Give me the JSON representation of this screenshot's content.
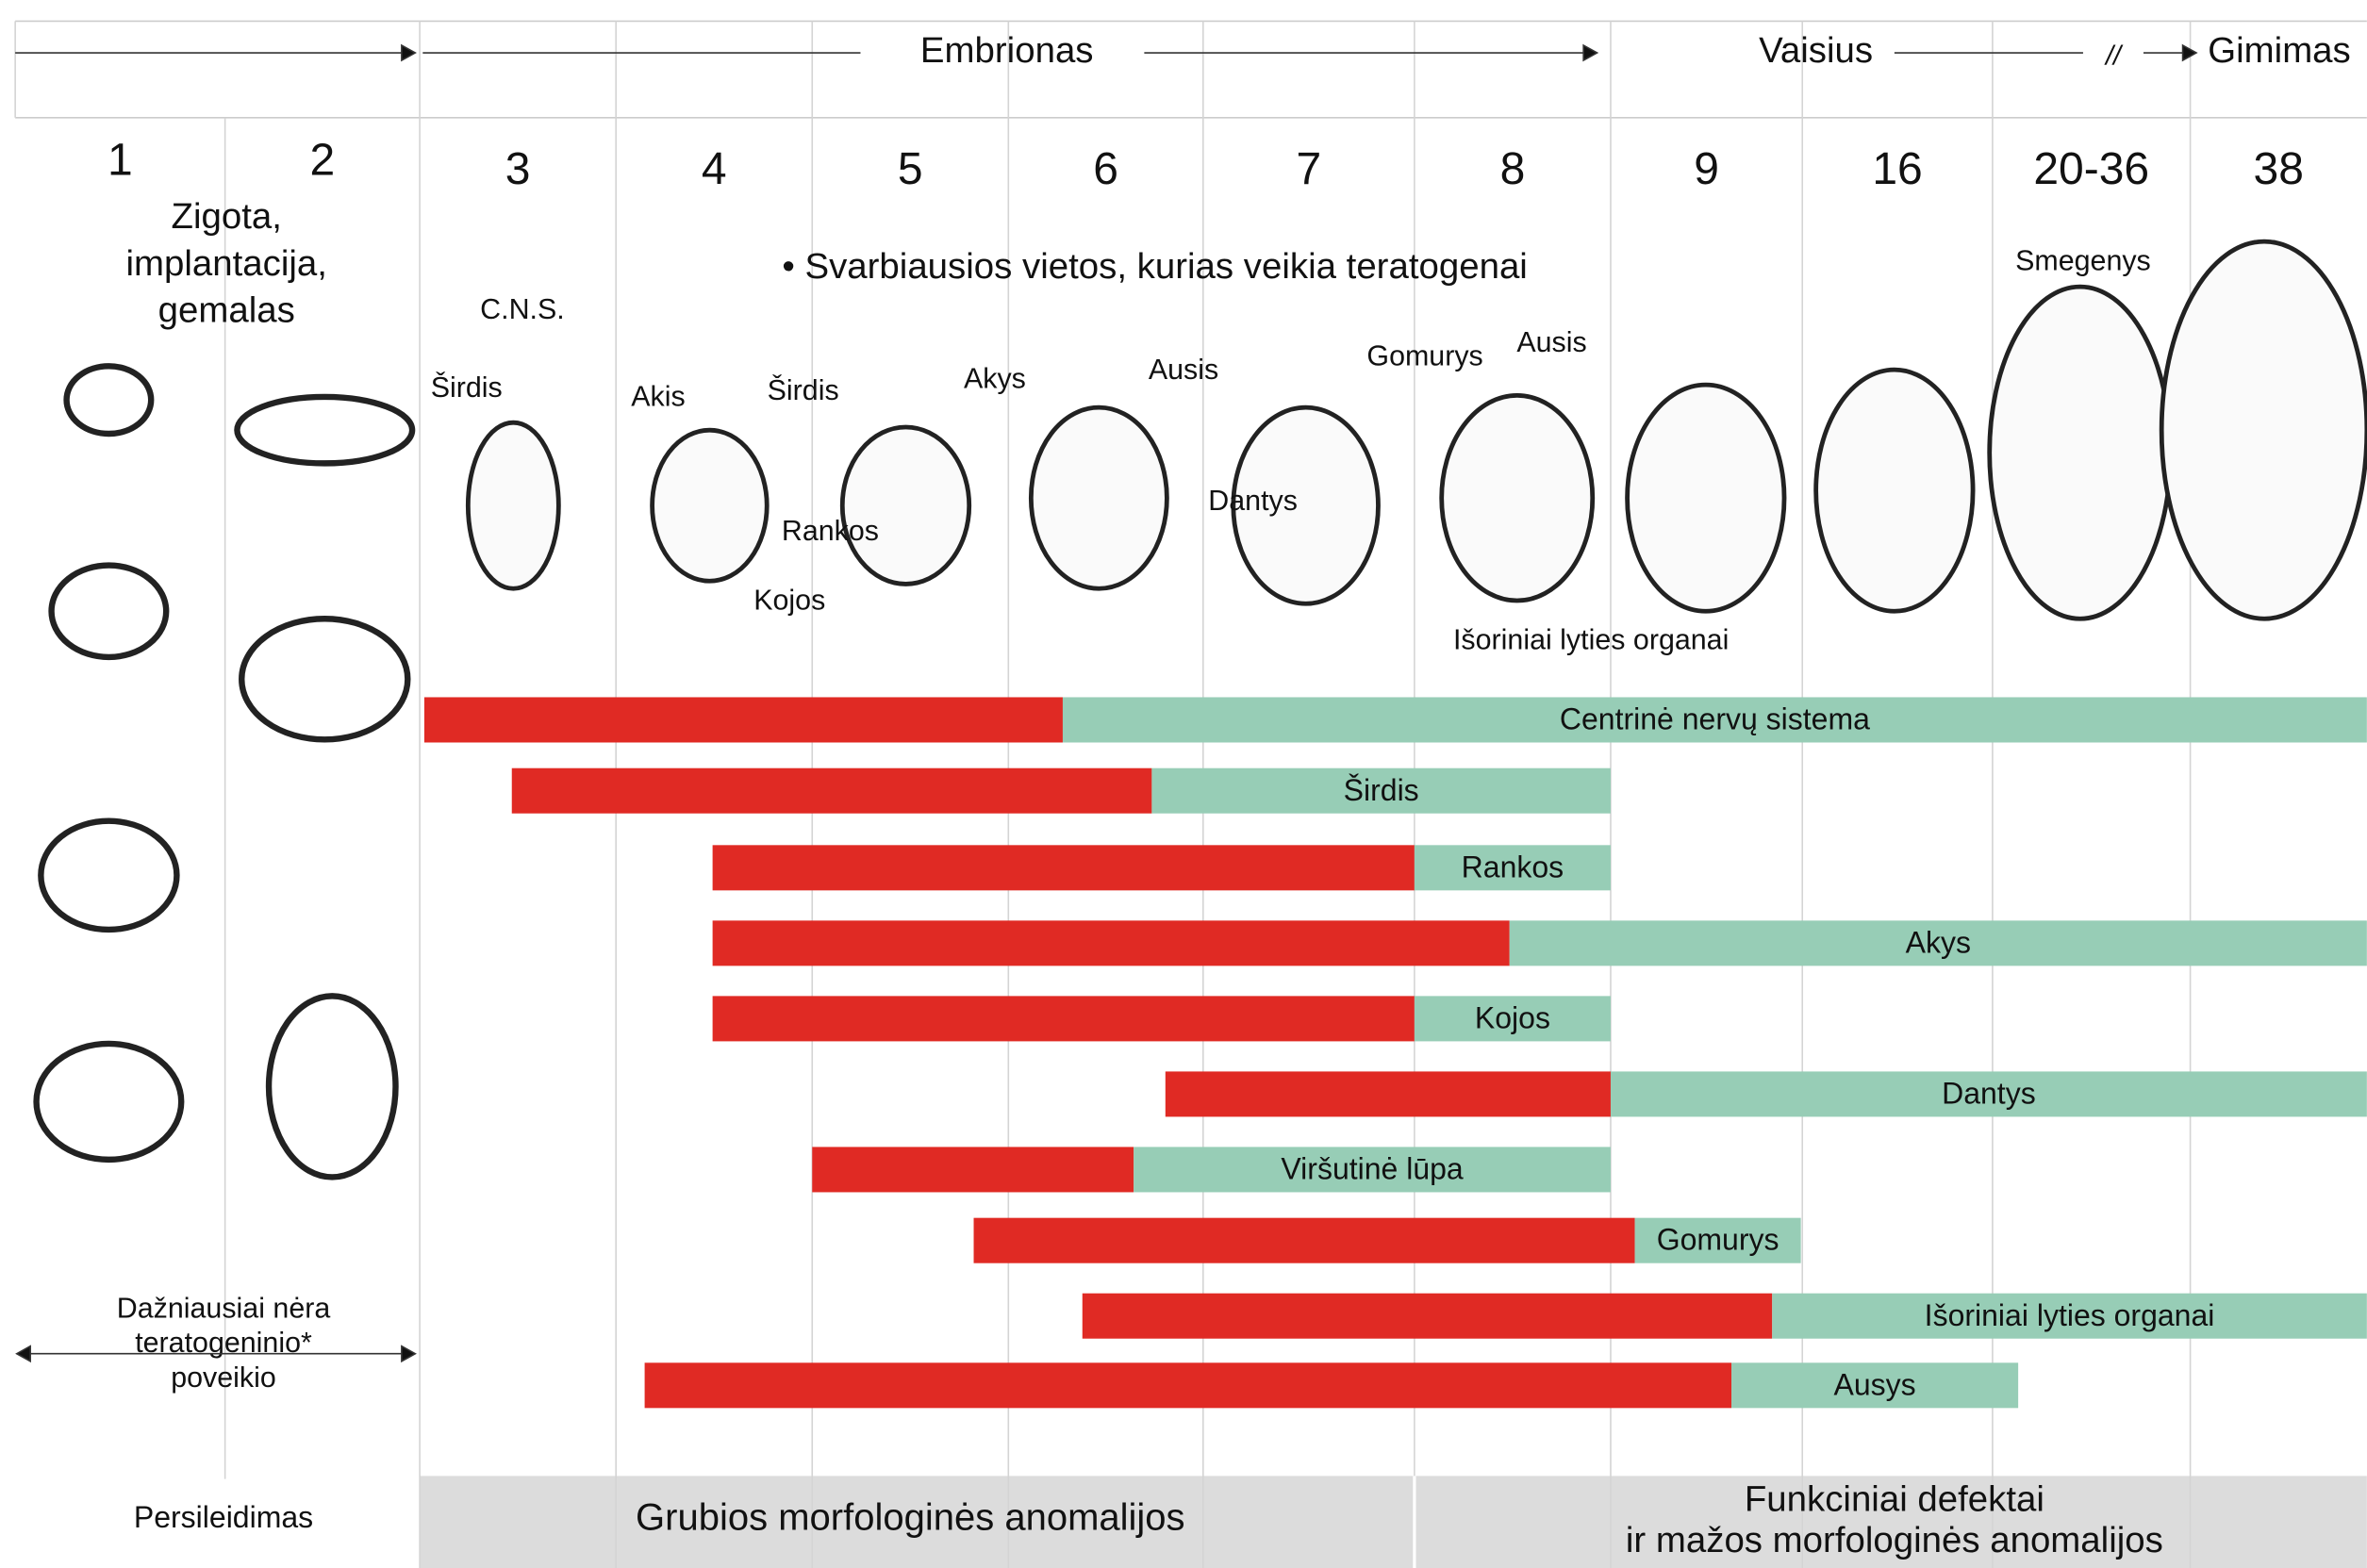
{
  "header": {
    "phases": [
      "Embrionas",
      "Vaisius",
      "//",
      "Gimimas"
    ]
  },
  "weeks": [
    "1",
    "2",
    "3",
    "4",
    "5",
    "6",
    "7",
    "8",
    "9",
    "16",
    "20-36",
    "38"
  ],
  "left_texts": {
    "stage": [
      "Zigota,",
      "implantacija,",
      "gemalas"
    ],
    "no_effect": [
      "Dažniausiai nėra",
      "teratogeninio*",
      "poveikio"
    ]
  },
  "note": "• Svarbiausios vietos, kurias veikia teratogenai",
  "annotations": [
    "C.N.S.",
    "Širdis",
    "Akis",
    "Širdis",
    "Akys",
    "Ausis",
    "Rankos",
    "Kojos",
    "Dantys",
    "Gomurys",
    "Ausis",
    "Išoriniai lyties organai",
    "Smegenys"
  ],
  "bars": [
    "Centrinė nervų sistema",
    "Širdis",
    "Rankos",
    "Akys",
    "Kojos",
    "Dantys",
    "Viršutinė lūpa",
    "Gomurys",
    "Išoriniai lyties organai",
    "Ausys"
  ],
  "footer": {
    "left": "Persileidimas",
    "middle": "Grubios morfologinės anomalijos",
    "right": [
      "Funkciniai defektai",
      "ir mažos morfologinės anomalijos"
    ]
  }
}
